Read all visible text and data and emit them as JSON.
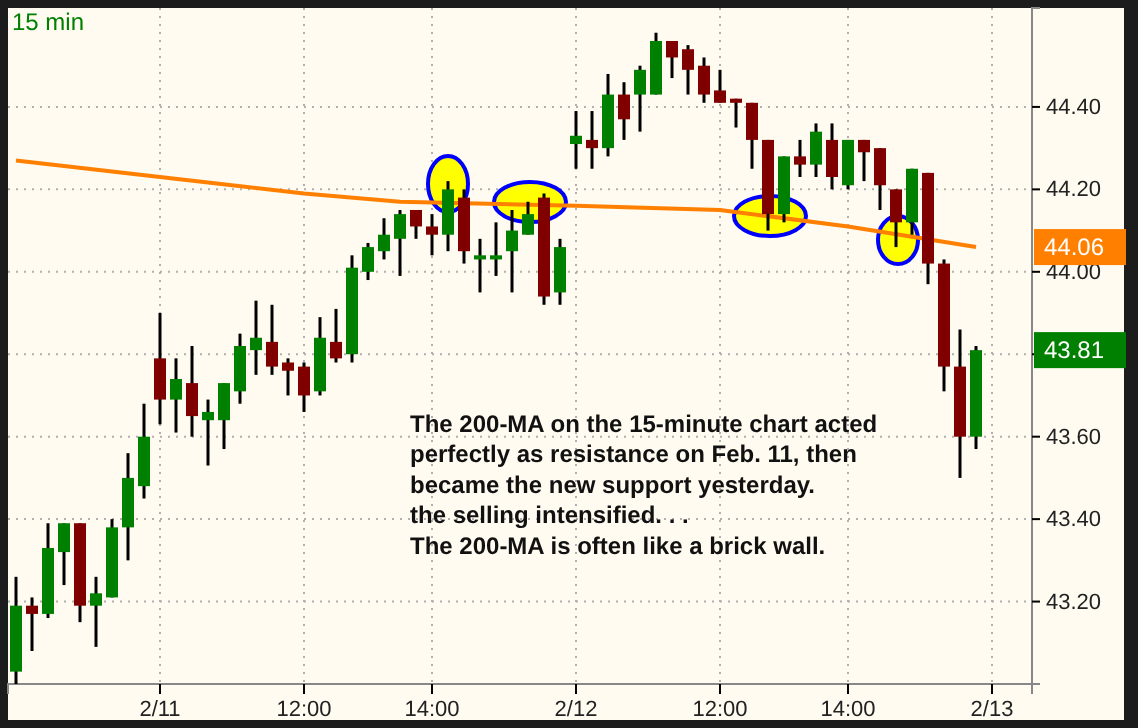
{
  "chart_data": {
    "type": "candlestick",
    "title": "15 min",
    "categories": [
      null,
      null,
      null,
      null,
      null,
      null,
      null,
      null,
      null,
      "2/11",
      null,
      null,
      null,
      null,
      null,
      null,
      null,
      null,
      "12:00",
      null,
      null,
      null,
      null,
      null,
      null,
      null,
      "14:00",
      null,
      null,
      null,
      null,
      null,
      null,
      null,
      null,
      "2/12",
      null,
      null,
      null,
      null,
      null,
      null,
      null,
      null,
      "12:00",
      null,
      null,
      null,
      null,
      null,
      null,
      null,
      "14:00",
      null,
      null,
      null,
      null,
      null,
      null,
      null,
      null,
      "2/13",
      null,
      null
    ],
    "ohlc": [
      [
        43.03,
        43.26,
        43.0,
        43.19
      ],
      [
        43.19,
        43.21,
        43.08,
        43.17
      ],
      [
        43.17,
        43.39,
        43.16,
        43.33
      ],
      [
        43.32,
        43.39,
        43.24,
        43.39
      ],
      [
        43.39,
        43.39,
        43.15,
        43.19
      ],
      [
        43.19,
        43.26,
        43.09,
        43.22
      ],
      [
        43.21,
        43.4,
        43.21,
        43.38
      ],
      [
        43.38,
        43.56,
        43.3,
        43.5
      ],
      [
        43.48,
        43.68,
        43.45,
        43.6
      ],
      [
        43.79,
        43.9,
        43.63,
        43.69
      ],
      [
        43.69,
        43.79,
        43.61,
        43.74
      ],
      [
        43.73,
        43.82,
        43.6,
        43.65
      ],
      [
        43.64,
        43.69,
        43.53,
        43.66
      ],
      [
        43.64,
        43.73,
        43.57,
        43.73
      ],
      [
        43.71,
        43.85,
        43.68,
        43.82
      ],
      [
        43.81,
        43.93,
        43.75,
        43.84
      ],
      [
        43.83,
        43.92,
        43.75,
        43.77
      ],
      [
        43.78,
        43.79,
        43.7,
        43.76
      ],
      [
        43.77,
        43.78,
        43.66,
        43.7
      ],
      [
        43.71,
        43.89,
        43.7,
        43.84
      ],
      [
        43.83,
        43.91,
        43.78,
        43.79
      ],
      [
        43.8,
        44.04,
        43.78,
        44.01
      ],
      [
        44.0,
        44.07,
        43.98,
        44.06
      ],
      [
        44.05,
        44.13,
        44.03,
        44.09
      ],
      [
        44.08,
        44.15,
        43.99,
        44.14
      ],
      [
        44.15,
        44.15,
        44.08,
        44.11
      ],
      [
        44.11,
        44.14,
        44.04,
        44.09
      ],
      [
        44.09,
        44.22,
        44.05,
        44.2
      ],
      [
        44.18,
        44.2,
        44.02,
        44.05
      ],
      [
        44.03,
        44.08,
        43.95,
        44.04
      ],
      [
        44.03,
        44.12,
        43.99,
        44.04
      ],
      [
        44.05,
        44.15,
        43.95,
        44.1
      ],
      [
        44.09,
        44.17,
        44.09,
        44.14
      ],
      [
        44.18,
        44.19,
        43.92,
        43.94
      ],
      [
        43.95,
        44.08,
        43.92,
        44.06
      ],
      [
        44.31,
        44.39,
        44.25,
        44.33
      ],
      [
        44.32,
        44.39,
        44.25,
        44.3
      ],
      [
        44.3,
        44.48,
        44.28,
        44.43
      ],
      [
        44.43,
        44.46,
        44.32,
        44.37
      ],
      [
        44.43,
        44.5,
        44.34,
        44.49
      ],
      [
        44.43,
        44.58,
        44.43,
        44.56
      ],
      [
        44.56,
        44.56,
        44.47,
        44.52
      ],
      [
        44.54,
        44.55,
        44.43,
        44.49
      ],
      [
        44.5,
        44.52,
        44.41,
        44.43
      ],
      [
        44.44,
        44.49,
        44.41,
        44.41
      ],
      [
        44.42,
        44.42,
        44.35,
        44.41
      ],
      [
        44.41,
        44.41,
        44.25,
        44.32
      ],
      [
        44.32,
        44.32,
        44.1,
        44.14
      ],
      [
        44.14,
        44.28,
        44.12,
        44.28
      ],
      [
        44.28,
        44.32,
        44.23,
        44.26
      ],
      [
        44.26,
        44.36,
        44.23,
        44.34
      ],
      [
        44.32,
        44.36,
        44.2,
        44.23
      ],
      [
        44.21,
        44.32,
        44.2,
        44.32
      ],
      [
        44.32,
        44.32,
        44.22,
        44.29
      ],
      [
        44.3,
        44.3,
        44.15,
        44.21
      ],
      [
        44.2,
        44.2,
        44.06,
        44.12
      ],
      [
        44.12,
        44.25,
        44.09,
        44.25
      ],
      [
        44.24,
        44.24,
        43.97,
        44.02
      ],
      [
        44.02,
        44.03,
        43.71,
        43.77
      ],
      [
        43.77,
        43.86,
        43.5,
        43.6
      ],
      [
        43.6,
        43.82,
        43.57,
        43.81
      ],
      null,
      null,
      null
    ],
    "colors": [
      "#008000",
      "#800000",
      "#008000",
      "#008000",
      "#800000",
      "#008000",
      "#008000",
      "#008000",
      "#008000",
      "#800000",
      "#008000",
      "#800000",
      "#008000",
      "#008000",
      "#008000",
      "#008000",
      "#800000",
      "#800000",
      "#800000",
      "#008000",
      "#800000",
      "#008000",
      "#008000",
      "#008000",
      "#008000",
      "#800000",
      "#800000",
      "#008000",
      "#800000",
      "#008000",
      "#008000",
      "#008000",
      "#008000",
      "#800000",
      "#008000",
      "#008000",
      "#800000",
      "#008000",
      "#800000",
      "#008000",
      "#008000",
      "#800000",
      "#800000",
      "#800000",
      "#800000",
      "#800000",
      "#800000",
      "#800000",
      "#008000",
      "#800000",
      "#008000",
      "#800000",
      "#008000",
      "#800000",
      "#800000",
      "#800000",
      "#008000",
      "#800000",
      "#800000",
      "#800000",
      "#008000",
      null,
      null,
      null
    ],
    "series": [
      {
        "type": "line",
        "color": "#ff8000",
        "values": [
          44.27,
          null,
          null,
          null,
          null,
          null,
          null,
          null,
          null,
          44.23,
          null,
          null,
          null,
          null,
          null,
          null,
          null,
          null,
          44.19,
          null,
          null,
          null,
          null,
          null,
          44.17,
          null,
          null,
          null,
          null,
          null,
          null,
          null,
          null,
          null,
          null,
          44.16,
          null,
          null,
          null,
          null,
          null,
          null,
          null,
          null,
          44.15,
          null,
          null,
          null,
          null,
          null,
          null,
          null,
          44.11,
          null,
          null,
          null,
          null,
          null,
          null,
          null,
          44.06,
          null,
          null,
          null
        ]
      }
    ],
    "ylim": [
      43.0,
      44.64
    ],
    "yticks": [
      {
        "value": 43.2,
        "label": "43.20"
      },
      {
        "value": 43.4,
        "label": "43.40"
      },
      {
        "value": 43.6,
        "label": "43.60"
      },
      {
        "value": 43.8,
        "label": null
      },
      {
        "value": 44.0,
        "label": "44.00"
      },
      {
        "value": 44.2,
        "label": "44.20"
      },
      {
        "value": 44.4,
        "label": "44.40"
      }
    ],
    "grid": true,
    "annotations": [
      "The 200-MA on the 15-minute chart acted\nperfectly as resistance on Feb. 11, then\nbecame the new support yesterday.\nthe selling intensified. . .\nThe 200-MA is often like a brick wall.",
      "44.06",
      "43.81"
    ]
  }
}
